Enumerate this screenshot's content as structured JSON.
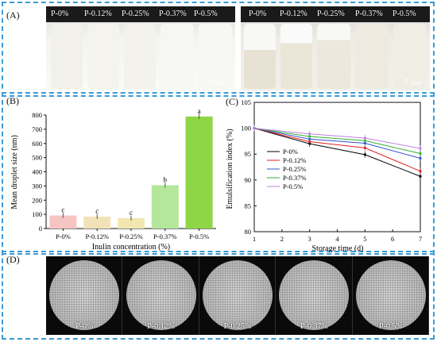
{
  "panelA": {
    "label": "(A)",
    "left_samples": [
      "P-0%",
      "P-0.12%",
      "P-0.25%",
      "P-0.37%",
      "P-0.5%"
    ],
    "right_samples": [
      "P-0%",
      "P-0.12%",
      "P-0.25%",
      "P-0.37%",
      "P-0.5%"
    ],
    "left_day": "0 day",
    "right_day": "7 day"
  },
  "panelB": {
    "label": "(B)"
  },
  "panelC": {
    "label": "(C)"
  },
  "panelD": {
    "label": "(D)",
    "samples": [
      "P-0%",
      "P-0.12%",
      "P-0.25%",
      "P-0.37%",
      "P-0.5%"
    ]
  },
  "colors": {
    "frame": "#3a9bd6",
    "bar_fills": [
      "#f7c4c4",
      "#f2e2b8",
      "#f2e7b0",
      "#b4e79a",
      "#8ed645"
    ]
  },
  "chart_data": [
    {
      "type": "bar",
      "title": "",
      "xlabel": "Inulin concentration (%)",
      "ylabel": "Mean droplet size (nm)",
      "categories": [
        "P-0%",
        "P-0.12%",
        "P-0.25%",
        "P-0.37%",
        "P-0.5%"
      ],
      "values": [
        92,
        84,
        73,
        305,
        790
      ],
      "letters": [
        "c",
        "c",
        "c",
        "b",
        "a"
      ],
      "ylim": [
        0,
        800
      ],
      "yticks": [
        "0",
        "100",
        "200",
        "300",
        "400",
        "500",
        "600",
        "700",
        "800"
      ]
    },
    {
      "type": "line",
      "title": "",
      "xlabel": "Storage time (d)",
      "ylabel": "Emulsification index (%)",
      "x": [
        1,
        3,
        5,
        7
      ],
      "xlim": [
        1,
        7
      ],
      "xticks": [
        "1",
        "2",
        "3",
        "4",
        "5",
        "6",
        "7"
      ],
      "ylim": [
        80,
        105
      ],
      "yticks": [
        "80",
        "85",
        "90",
        "95",
        "100",
        "105"
      ],
      "legend_position": "lower-left",
      "series": [
        {
          "name": "P-0%",
          "color": "#000000",
          "values": [
            100,
            97,
            94.9,
            90.7
          ]
        },
        {
          "name": "P-0.12%",
          "color": "#e02020",
          "values": [
            100,
            97.4,
            96.2,
            91.7
          ]
        },
        {
          "name": "P-0.25%",
          "color": "#3050d0",
          "values": [
            100,
            97.9,
            97.1,
            94.2
          ]
        },
        {
          "name": "P-0.37%",
          "color": "#30b030",
          "values": [
            100,
            98.4,
            97.6,
            95.1
          ]
        },
        {
          "name": "P-0.5%",
          "color": "#c080e0",
          "values": [
            100,
            98.9,
            98.1,
            96.1
          ]
        }
      ]
    }
  ]
}
